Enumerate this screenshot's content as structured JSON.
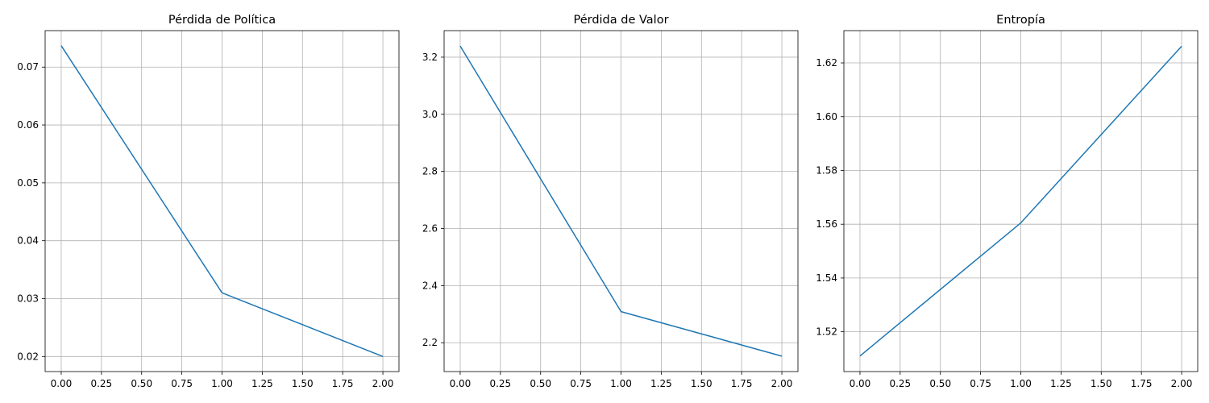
{
  "chart_data": [
    {
      "type": "line",
      "title": "Pérdida de Política",
      "xlabel": "",
      "ylabel": "",
      "grid": true,
      "color": "#1f77b4",
      "x": [
        0,
        1,
        2
      ],
      "series": [
        {
          "values": [
            0.0737,
            0.031,
            0.02
          ]
        }
      ],
      "xlim": [
        -0.1,
        2.1
      ],
      "ylim": [
        0.0174,
        0.0763
      ],
      "xticks": [
        0,
        0.25,
        0.5,
        0.75,
        1.0,
        1.25,
        1.5,
        1.75,
        2.0
      ],
      "xtick_labels": [
        "0.00",
        "0.25",
        "0.50",
        "0.75",
        "1.00",
        "1.25",
        "1.50",
        "1.75",
        "2.00"
      ],
      "yticks": [
        0.02,
        0.03,
        0.04,
        0.05,
        0.06,
        0.07
      ],
      "ytick_labels": [
        "0.02",
        "0.03",
        "0.04",
        "0.05",
        "0.06",
        "0.07"
      ]
    },
    {
      "type": "line",
      "title": "Pérdida de Valor",
      "xlabel": "",
      "ylabel": "",
      "grid": true,
      "color": "#1f77b4",
      "x": [
        0,
        1,
        2
      ],
      "series": [
        {
          "values": [
            3.239,
            2.309,
            2.153
          ]
        }
      ],
      "xlim": [
        -0.1,
        2.1
      ],
      "ylim": [
        2.099,
        3.293
      ],
      "xticks": [
        0,
        0.25,
        0.5,
        0.75,
        1.0,
        1.25,
        1.5,
        1.75,
        2.0
      ],
      "xtick_labels": [
        "0.00",
        "0.25",
        "0.50",
        "0.75",
        "1.00",
        "1.25",
        "1.50",
        "1.75",
        "2.00"
      ],
      "yticks": [
        2.2,
        2.4,
        2.6,
        2.8,
        3.0,
        3.2
      ],
      "ytick_labels": [
        "2.2",
        "2.4",
        "2.6",
        "2.8",
        "3.0",
        "3.2"
      ]
    },
    {
      "type": "line",
      "title": "Entropía",
      "xlabel": "",
      "ylabel": "",
      "grid": true,
      "color": "#1f77b4",
      "x": [
        0,
        1,
        2
      ],
      "series": [
        {
          "values": [
            1.511,
            1.5605,
            1.6262
          ]
        }
      ],
      "xlim": [
        -0.1,
        2.1
      ],
      "ylim": [
        1.5052,
        1.632
      ],
      "xticks": [
        0,
        0.25,
        0.5,
        0.75,
        1.0,
        1.25,
        1.5,
        1.75,
        2.0
      ],
      "xtick_labels": [
        "0.00",
        "0.25",
        "0.50",
        "0.75",
        "1.00",
        "1.25",
        "1.50",
        "1.75",
        "2.00"
      ],
      "yticks": [
        1.52,
        1.54,
        1.56,
        1.58,
        1.6,
        1.62
      ],
      "ytick_labels": [
        "1.52",
        "1.54",
        "1.56",
        "1.58",
        "1.60",
        "1.62"
      ]
    }
  ]
}
